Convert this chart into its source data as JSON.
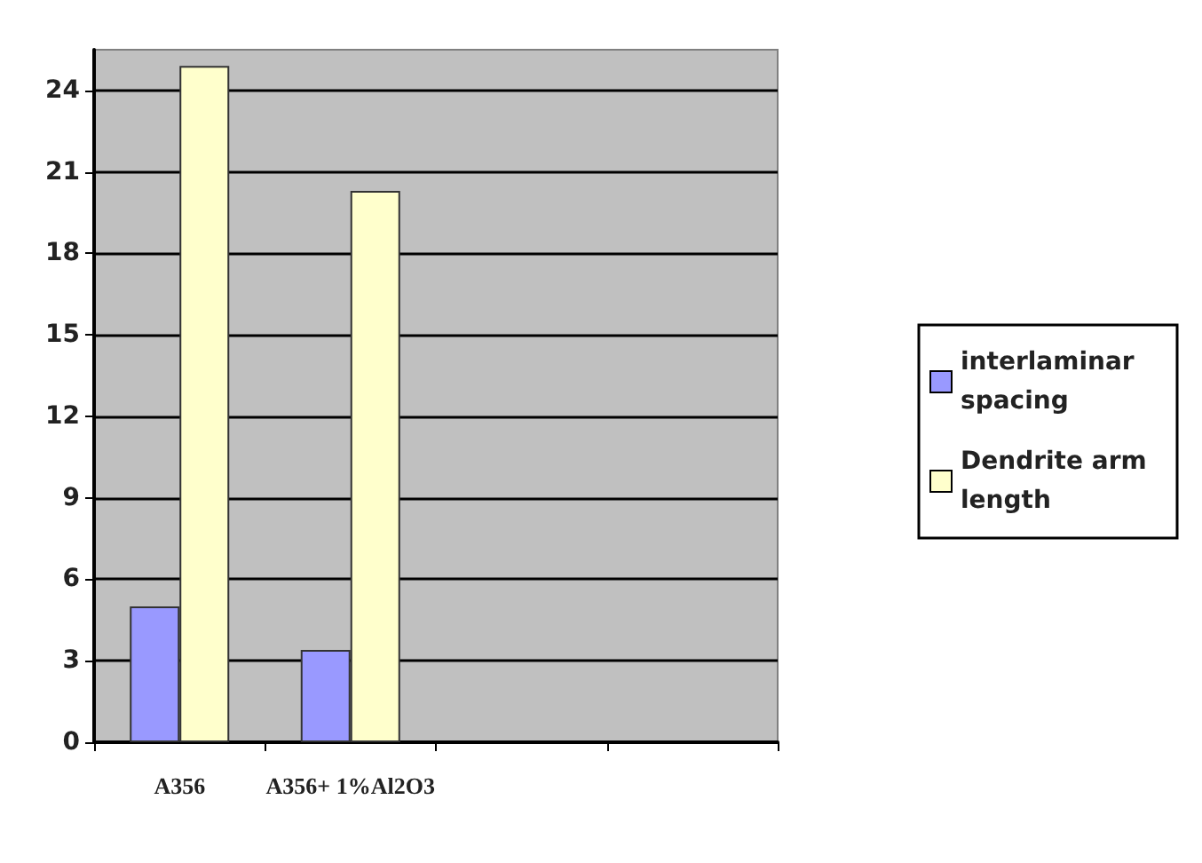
{
  "chart_data": {
    "type": "bar",
    "categories": [
      "A356",
      "A356+ 1%Al2O3",
      null,
      null
    ],
    "series": [
      {
        "name": "interlaminar spacing",
        "color": "#9999ff",
        "values": [
          5,
          3.4,
          null,
          null
        ]
      },
      {
        "name": "Dendrite arm length",
        "color": "#ffffcc",
        "values": [
          24.9,
          20.3,
          null,
          null
        ]
      }
    ],
    "ylim": [
      0,
      25.5
    ],
    "yticks": [
      0,
      3,
      6,
      9,
      12,
      15,
      18,
      21,
      24
    ],
    "grid": "y",
    "legend": "right"
  }
}
